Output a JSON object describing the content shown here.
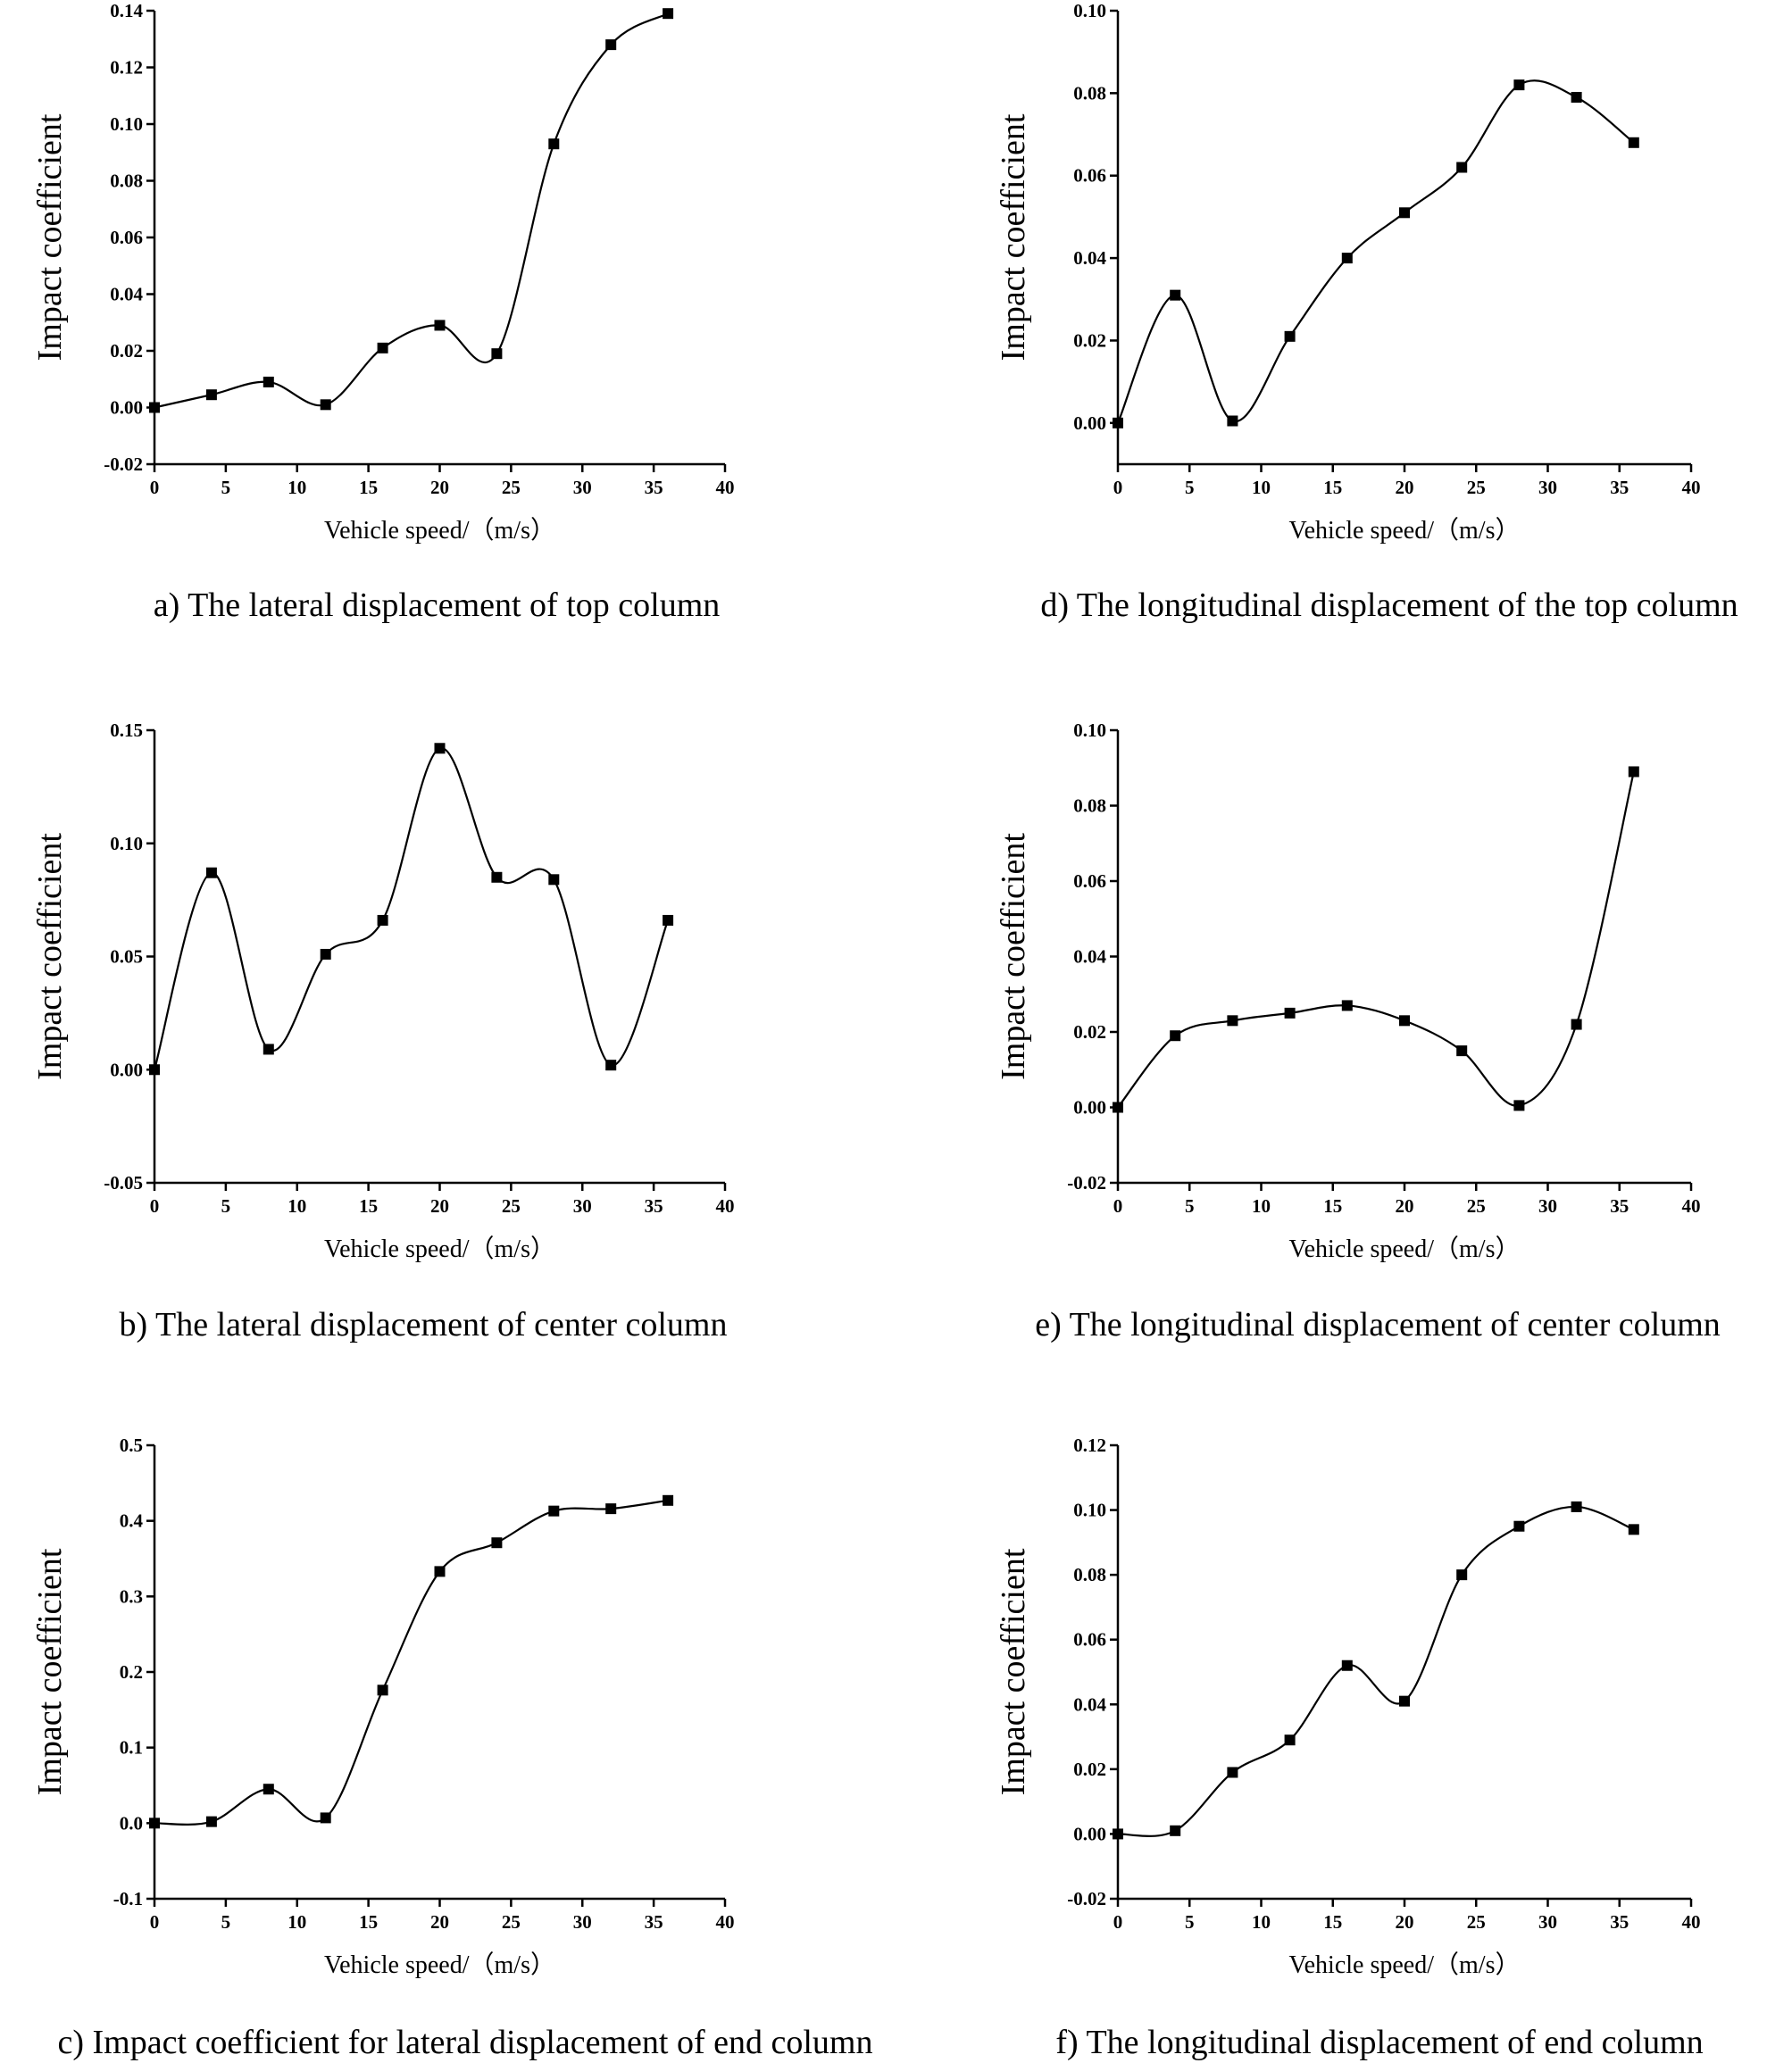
{
  "chart_data": [
    {
      "id": "a",
      "type": "line",
      "title": "a) The lateral displacement of top column",
      "xlabel": "Vehicle speed/（m/s）",
      "ylabel": "Impact coefficient",
      "xlim": [
        0,
        40
      ],
      "ylim": [
        -0.02,
        0.14
      ],
      "xticks": [
        0,
        5,
        10,
        15,
        20,
        25,
        30,
        35,
        40
      ],
      "yticks": [
        "-0.02",
        "0.00",
        "0.02",
        "0.04",
        "0.06",
        "0.08",
        "0.10",
        "0.12",
        "0.14"
      ],
      "x": [
        0,
        4,
        8,
        12,
        16,
        20,
        24,
        28,
        32,
        36
      ],
      "y": [
        0.0,
        0.0045,
        0.009,
        0.001,
        0.021,
        0.029,
        0.019,
        0.093,
        0.128,
        0.139
      ]
    },
    {
      "id": "b",
      "type": "line",
      "title": "b) The lateral displacement of center column",
      "xlabel": "Vehicle speed/（m/s）",
      "ylabel": "Impact coefficient",
      "xlim": [
        0,
        40
      ],
      "ylim": [
        -0.05,
        0.15
      ],
      "xticks": [
        0,
        5,
        10,
        15,
        20,
        25,
        30,
        35,
        40
      ],
      "yticks": [
        "-0.05",
        "0.00",
        "0.05",
        "0.10",
        "0.15"
      ],
      "x": [
        0,
        4,
        8,
        12,
        16,
        20,
        24,
        28,
        32,
        36
      ],
      "y": [
        0.0,
        0.087,
        0.009,
        0.051,
        0.066,
        0.142,
        0.085,
        0.084,
        0.002,
        0.066
      ]
    },
    {
      "id": "c",
      "type": "line",
      "title": "c) Impact coefficient for lateral displacement of end column",
      "xlabel": "Vehicle speed/（m/s）",
      "ylabel": "Impact coefficient",
      "xlim": [
        0,
        40
      ],
      "ylim": [
        -0.1,
        0.5
      ],
      "xticks": [
        0,
        5,
        10,
        15,
        20,
        25,
        30,
        35,
        40
      ],
      "yticks": [
        "-0.1",
        "0.0",
        "0.1",
        "0.2",
        "0.3",
        "0.4",
        "0.5"
      ],
      "x": [
        0,
        4,
        8,
        12,
        16,
        20,
        24,
        28,
        32,
        36
      ],
      "y": [
        0.0,
        0.002,
        0.045,
        0.007,
        0.176,
        0.333,
        0.371,
        0.413,
        0.416,
        0.427
      ]
    },
    {
      "id": "d",
      "type": "line",
      "title": "d) The longitudinal displacement of the top column",
      "xlabel": "Vehicle speed/（m/s）",
      "ylabel": "Impact coefficient",
      "xlim": [
        0,
        40
      ],
      "ylim": [
        -0.01,
        0.1
      ],
      "xticks": [
        0,
        5,
        10,
        15,
        20,
        25,
        30,
        35,
        40
      ],
      "yticks": [
        "0.00",
        "0.02",
        "0.04",
        "0.06",
        "0.08",
        "0.10"
      ],
      "x": [
        0,
        4,
        8,
        12,
        16,
        20,
        24,
        28,
        32,
        36
      ],
      "y": [
        0.0,
        0.031,
        0.0005,
        0.021,
        0.04,
        0.051,
        0.062,
        0.082,
        0.079,
        0.068
      ]
    },
    {
      "id": "e",
      "type": "line",
      "title": "e) The longitudinal displacement of center column",
      "xlabel": "Vehicle speed/（m/s）",
      "ylabel": "Impact coefficient",
      "xlim": [
        0,
        40
      ],
      "ylim": [
        -0.02,
        0.1
      ],
      "xticks": [
        0,
        5,
        10,
        15,
        20,
        25,
        30,
        35,
        40
      ],
      "yticks": [
        "-0.02",
        "0.00",
        "0.02",
        "0.04",
        "0.06",
        "0.08",
        "0.10"
      ],
      "x": [
        0,
        4,
        8,
        12,
        16,
        20,
        24,
        28,
        32,
        36
      ],
      "y": [
        0.0,
        0.019,
        0.023,
        0.025,
        0.027,
        0.023,
        0.015,
        0.0005,
        0.022,
        0.089
      ]
    },
    {
      "id": "f",
      "type": "line",
      "title": "f) The longitudinal displacement of end column",
      "xlabel": "Vehicle speed/（m/s）",
      "ylabel": "Impact coefficient",
      "xlim": [
        0,
        40
      ],
      "ylim": [
        -0.02,
        0.12
      ],
      "xticks": [
        0,
        5,
        10,
        15,
        20,
        25,
        30,
        35,
        40
      ],
      "yticks": [
        "-0.02",
        "0.00",
        "0.02",
        "0.04",
        "0.06",
        "0.08",
        "0.10",
        "0.12"
      ],
      "x": [
        0,
        4,
        8,
        12,
        16,
        20,
        24,
        28,
        32,
        36
      ],
      "y": [
        0.0,
        0.001,
        0.019,
        0.029,
        0.052,
        0.041,
        0.08,
        0.095,
        0.101,
        0.094
      ]
    }
  ]
}
